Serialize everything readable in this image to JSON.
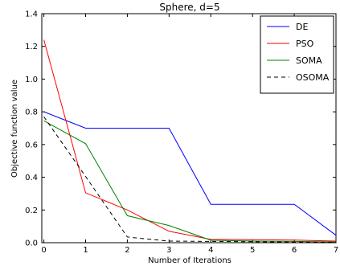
{
  "chart_data": {
    "type": "line",
    "title": "Sphere, d=5",
    "xlabel": "Number of Iterations",
    "ylabel": "Objective function value",
    "xlim": [
      -0.05,
      7
    ],
    "ylim": [
      0,
      1.4
    ],
    "xticks": [
      0,
      1,
      2,
      3,
      4,
      5,
      6,
      7
    ],
    "yticks": [
      0.0,
      0.2,
      0.4,
      0.6,
      0.8,
      1.0,
      1.2,
      1.4
    ],
    "grid": false,
    "legend_position": "top-right",
    "x": [
      0,
      1,
      2,
      3,
      4,
      5,
      6,
      7
    ],
    "series": [
      {
        "name": "DE",
        "color": "#0000ff",
        "dash": "solid",
        "values": [
          0.8,
          0.7,
          0.7,
          0.7,
          0.235,
          0.235,
          0.235,
          0.045
        ]
      },
      {
        "name": "PSO",
        "color": "#ff0000",
        "dash": "solid",
        "values": [
          1.24,
          0.305,
          0.2,
          0.07,
          0.02,
          0.018,
          0.016,
          0.01
        ]
      },
      {
        "name": "SOMA",
        "color": "#008000",
        "dash": "solid",
        "values": [
          0.745,
          0.605,
          0.165,
          0.105,
          0.015,
          0.01,
          0.008,
          0.005
        ]
      },
      {
        "name": "OSOMA",
        "color": "#000000",
        "dash": "dashed",
        "values": [
          0.77,
          0.405,
          0.035,
          0.01,
          0.008,
          0.006,
          0.004,
          0.003
        ]
      }
    ]
  }
}
